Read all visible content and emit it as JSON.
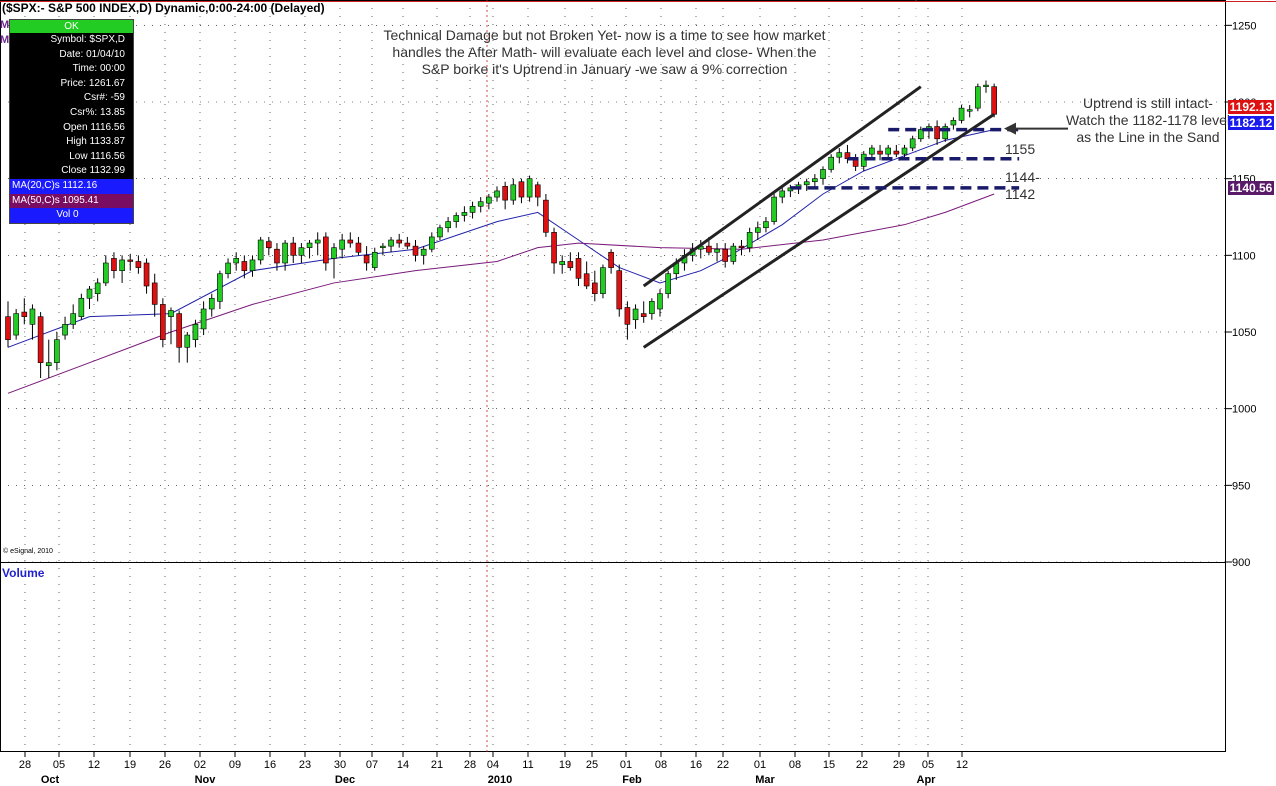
{
  "title": "($SPX:- S&P 500 INDEX,D) Dynamic,0:00-24:00 (Delayed)",
  "info_box": {
    "status": "OK",
    "rows": [
      "Symbol: $SPX,D",
      "Date: 01/04/10",
      "Time: 00:00",
      "Price: 1261.67",
      "Csr#: -59",
      "Csr%: 13.85",
      "Open 1116.56",
      "High 1133.87",
      "Low 1116.56",
      "Close 1132.99"
    ],
    "ma20": "MA(20,C)s 1112.16",
    "ma50": "MA(50,C)s 1095.41",
    "vol": "Vol 0"
  },
  "left_markers": [
    "M",
    "M"
  ],
  "annotations": {
    "headline": "Technical Damage but not Broken Yet- now is a time to see how market handles the After Math- will evaluate each level and close-  When the S&P borke it's Uptrend in January -we saw a 9% correction",
    "uptrend": "Uptrend is still intact-Watch the 1182-1178 level as the Line in the Sand",
    "level_1155": "1155",
    "level_1144": "1144-1142"
  },
  "price_tags": [
    {
      "value": "1192.13",
      "color": "#dd1111"
    },
    {
      "value": "1182.12",
      "color": "#1a1aee"
    },
    {
      "value": "1140.56",
      "color": "#5a1a6a"
    }
  ],
  "volume_label": "Volume",
  "copyright": "© eSignal, 2010",
  "colors": {
    "up": "#22cc22",
    "down": "#dd1111",
    "ma20": "#2222aa",
    "ma50": "#7a1a7a",
    "grid": "#000000",
    "level": "#1a1a6a"
  },
  "chart_data": {
    "type": "candlestick",
    "title": "($SPX:- S&P 500 INDEX,D) Dynamic,0:00-24:00 (Delayed)",
    "ylim": [
      900,
      1260
    ],
    "y_ticks": [
      900,
      950,
      1000,
      1050,
      1100,
      1150,
      1200,
      1250
    ],
    "x_tick_labels": [
      "28",
      "05",
      "12",
      "19",
      "26",
      "02",
      "09",
      "16",
      "23",
      "30",
      "07",
      "14",
      "21",
      "28",
      "04",
      "11",
      "19",
      "25",
      "01",
      "08",
      "16",
      "22",
      "01",
      "08",
      "15",
      "22",
      "29",
      "05",
      "12"
    ],
    "month_labels": [
      "Oct",
      "Nov",
      "Dec",
      "2010",
      "Feb",
      "Mar",
      "Apr"
    ],
    "candles": [
      {
        "o": 1060,
        "h": 1070,
        "l": 1040,
        "c": 1045
      },
      {
        "o": 1048,
        "h": 1065,
        "l": 1045,
        "c": 1062
      },
      {
        "o": 1063,
        "h": 1072,
        "l": 1055,
        "c": 1060
      },
      {
        "o": 1055,
        "h": 1068,
        "l": 1045,
        "c": 1065
      },
      {
        "o": 1060,
        "h": 1063,
        "l": 1020,
        "c": 1030
      },
      {
        "o": 1028,
        "h": 1045,
        "l": 1020,
        "c": 1030
      },
      {
        "o": 1030,
        "h": 1050,
        "l": 1025,
        "c": 1045
      },
      {
        "o": 1048,
        "h": 1060,
        "l": 1045,
        "c": 1055
      },
      {
        "o": 1055,
        "h": 1068,
        "l": 1052,
        "c": 1062
      },
      {
        "o": 1060,
        "h": 1075,
        "l": 1058,
        "c": 1072
      },
      {
        "o": 1072,
        "h": 1080,
        "l": 1065,
        "c": 1078
      },
      {
        "o": 1075,
        "h": 1085,
        "l": 1070,
        "c": 1082
      },
      {
        "o": 1082,
        "h": 1100,
        "l": 1080,
        "c": 1095
      },
      {
        "o": 1098,
        "h": 1102,
        "l": 1085,
        "c": 1090
      },
      {
        "o": 1090,
        "h": 1100,
        "l": 1082,
        "c": 1097
      },
      {
        "o": 1097,
        "h": 1101,
        "l": 1090,
        "c": 1096
      },
      {
        "o": 1096,
        "h": 1100,
        "l": 1088,
        "c": 1092
      },
      {
        "o": 1095,
        "h": 1098,
        "l": 1075,
        "c": 1080
      },
      {
        "o": 1082,
        "h": 1088,
        "l": 1060,
        "c": 1068
      },
      {
        "o": 1068,
        "h": 1072,
        "l": 1040,
        "c": 1045
      },
      {
        "o": 1060,
        "h": 1066,
        "l": 1042,
        "c": 1064
      },
      {
        "o": 1062,
        "h": 1064,
        "l": 1030,
        "c": 1040
      },
      {
        "o": 1040,
        "h": 1050,
        "l": 1030,
        "c": 1048
      },
      {
        "o": 1045,
        "h": 1058,
        "l": 1040,
        "c": 1055
      },
      {
        "o": 1052,
        "h": 1070,
        "l": 1048,
        "c": 1065
      },
      {
        "o": 1065,
        "h": 1075,
        "l": 1060,
        "c": 1072
      },
      {
        "o": 1070,
        "h": 1090,
        "l": 1065,
        "c": 1088
      },
      {
        "o": 1088,
        "h": 1098,
        "l": 1085,
        "c": 1095
      },
      {
        "o": 1095,
        "h": 1102,
        "l": 1090,
        "c": 1098
      },
      {
        "o": 1096,
        "h": 1100,
        "l": 1085,
        "c": 1090
      },
      {
        "o": 1090,
        "h": 1100,
        "l": 1086,
        "c": 1097
      },
      {
        "o": 1097,
        "h": 1112,
        "l": 1094,
        "c": 1110
      },
      {
        "o": 1109,
        "h": 1112,
        "l": 1100,
        "c": 1105
      },
      {
        "o": 1104,
        "h": 1108,
        "l": 1090,
        "c": 1095
      },
      {
        "o": 1095,
        "h": 1110,
        "l": 1090,
        "c": 1108
      },
      {
        "o": 1108,
        "h": 1112,
        "l": 1095,
        "c": 1100
      },
      {
        "o": 1100,
        "h": 1108,
        "l": 1095,
        "c": 1105
      },
      {
        "o": 1105,
        "h": 1110,
        "l": 1098,
        "c": 1108
      },
      {
        "o": 1108,
        "h": 1115,
        "l": 1100,
        "c": 1110
      },
      {
        "o": 1112,
        "h": 1115,
        "l": 1090,
        "c": 1095
      },
      {
        "o": 1098,
        "h": 1108,
        "l": 1085,
        "c": 1105
      },
      {
        "o": 1104,
        "h": 1114,
        "l": 1098,
        "c": 1110
      },
      {
        "o": 1110,
        "h": 1115,
        "l": 1105,
        "c": 1108
      },
      {
        "o": 1108,
        "h": 1112,
        "l": 1100,
        "c": 1102
      },
      {
        "o": 1100,
        "h": 1106,
        "l": 1090,
        "c": 1095
      },
      {
        "o": 1092,
        "h": 1105,
        "l": 1090,
        "c": 1102
      },
      {
        "o": 1105,
        "h": 1108,
        "l": 1100,
        "c": 1106
      },
      {
        "o": 1106,
        "h": 1112,
        "l": 1102,
        "c": 1110
      },
      {
        "o": 1110,
        "h": 1114,
        "l": 1105,
        "c": 1108
      },
      {
        "o": 1108,
        "h": 1112,
        "l": 1104,
        "c": 1106
      },
      {
        "o": 1106,
        "h": 1110,
        "l": 1096,
        "c": 1100
      },
      {
        "o": 1100,
        "h": 1106,
        "l": 1094,
        "c": 1104
      },
      {
        "o": 1104,
        "h": 1115,
        "l": 1102,
        "c": 1112
      },
      {
        "o": 1112,
        "h": 1120,
        "l": 1110,
        "c": 1118
      },
      {
        "o": 1118,
        "h": 1125,
        "l": 1115,
        "c": 1122
      },
      {
        "o": 1122,
        "h": 1128,
        "l": 1118,
        "c": 1126
      },
      {
        "o": 1126,
        "h": 1132,
        "l": 1122,
        "c": 1128
      },
      {
        "o": 1128,
        "h": 1135,
        "l": 1124,
        "c": 1132
      },
      {
        "o": 1132,
        "h": 1138,
        "l": 1128,
        "c": 1135
      },
      {
        "o": 1134,
        "h": 1140,
        "l": 1130,
        "c": 1138
      },
      {
        "o": 1138,
        "h": 1145,
        "l": 1135,
        "c": 1142
      },
      {
        "o": 1145,
        "h": 1148,
        "l": 1130,
        "c": 1136
      },
      {
        "o": 1136,
        "h": 1150,
        "l": 1133,
        "c": 1146
      },
      {
        "o": 1148,
        "h": 1150,
        "l": 1134,
        "c": 1138
      },
      {
        "o": 1138,
        "h": 1152,
        "l": 1135,
        "c": 1150
      },
      {
        "o": 1146,
        "h": 1148,
        "l": 1132,
        "c": 1138
      },
      {
        "o": 1136,
        "h": 1140,
        "l": 1112,
        "c": 1115
      },
      {
        "o": 1115,
        "h": 1118,
        "l": 1088,
        "c": 1095
      },
      {
        "o": 1094,
        "h": 1100,
        "l": 1088,
        "c": 1096
      },
      {
        "o": 1096,
        "h": 1102,
        "l": 1090,
        "c": 1092
      },
      {
        "o": 1098,
        "h": 1102,
        "l": 1080,
        "c": 1085
      },
      {
        "o": 1088,
        "h": 1096,
        "l": 1078,
        "c": 1080
      },
      {
        "o": 1082,
        "h": 1090,
        "l": 1070,
        "c": 1075
      },
      {
        "o": 1075,
        "h": 1094,
        "l": 1072,
        "c": 1092
      },
      {
        "o": 1102,
        "h": 1104,
        "l": 1088,
        "c": 1092
      },
      {
        "o": 1090,
        "h": 1094,
        "l": 1060,
        "c": 1065
      },
      {
        "o": 1066,
        "h": 1070,
        "l": 1045,
        "c": 1055
      },
      {
        "o": 1058,
        "h": 1068,
        "l": 1052,
        "c": 1065
      },
      {
        "o": 1062,
        "h": 1070,
        "l": 1056,
        "c": 1060
      },
      {
        "o": 1062,
        "h": 1072,
        "l": 1058,
        "c": 1070
      },
      {
        "o": 1065,
        "h": 1078,
        "l": 1060,
        "c": 1075
      },
      {
        "o": 1075,
        "h": 1090,
        "l": 1072,
        "c": 1088
      },
      {
        "o": 1088,
        "h": 1098,
        "l": 1084,
        "c": 1095
      },
      {
        "o": 1095,
        "h": 1104,
        "l": 1090,
        "c": 1100
      },
      {
        "o": 1100,
        "h": 1108,
        "l": 1096,
        "c": 1104
      },
      {
        "o": 1104,
        "h": 1110,
        "l": 1098,
        "c": 1106
      },
      {
        "o": 1106,
        "h": 1112,
        "l": 1100,
        "c": 1102
      },
      {
        "o": 1102,
        "h": 1108,
        "l": 1096,
        "c": 1104
      },
      {
        "o": 1104,
        "h": 1108,
        "l": 1092,
        "c": 1096
      },
      {
        "o": 1096,
        "h": 1108,
        "l": 1094,
        "c": 1106
      },
      {
        "o": 1106,
        "h": 1110,
        "l": 1100,
        "c": 1105
      },
      {
        "o": 1105,
        "h": 1118,
        "l": 1102,
        "c": 1115
      },
      {
        "o": 1115,
        "h": 1122,
        "l": 1110,
        "c": 1118
      },
      {
        "o": 1118,
        "h": 1125,
        "l": 1115,
        "c": 1122
      },
      {
        "o": 1122,
        "h": 1140,
        "l": 1120,
        "c": 1138
      },
      {
        "o": 1138,
        "h": 1145,
        "l": 1134,
        "c": 1142
      },
      {
        "o": 1142,
        "h": 1146,
        "l": 1138,
        "c": 1144
      },
      {
        "o": 1144,
        "h": 1148,
        "l": 1140,
        "c": 1146
      },
      {
        "o": 1146,
        "h": 1150,
        "l": 1142,
        "c": 1148
      },
      {
        "o": 1148,
        "h": 1153,
        "l": 1145,
        "c": 1150
      },
      {
        "o": 1150,
        "h": 1158,
        "l": 1146,
        "c": 1156
      },
      {
        "o": 1156,
        "h": 1166,
        "l": 1154,
        "c": 1164
      },
      {
        "o": 1164,
        "h": 1170,
        "l": 1160,
        "c": 1167
      },
      {
        "o": 1167,
        "h": 1172,
        "l": 1160,
        "c": 1163
      },
      {
        "o": 1163,
        "h": 1166,
        "l": 1155,
        "c": 1158
      },
      {
        "o": 1158,
        "h": 1168,
        "l": 1155,
        "c": 1166
      },
      {
        "o": 1166,
        "h": 1172,
        "l": 1162,
        "c": 1170
      },
      {
        "o": 1168,
        "h": 1172,
        "l": 1162,
        "c": 1166
      },
      {
        "o": 1166,
        "h": 1172,
        "l": 1164,
        "c": 1170
      },
      {
        "o": 1168,
        "h": 1172,
        "l": 1164,
        "c": 1166
      },
      {
        "o": 1166,
        "h": 1172,
        "l": 1163,
        "c": 1170
      },
      {
        "o": 1170,
        "h": 1178,
        "l": 1168,
        "c": 1176
      },
      {
        "o": 1176,
        "h": 1184,
        "l": 1174,
        "c": 1182
      },
      {
        "o": 1182,
        "h": 1186,
        "l": 1176,
        "c": 1184
      },
      {
        "o": 1184,
        "h": 1188,
        "l": 1172,
        "c": 1176
      },
      {
        "o": 1176,
        "h": 1186,
        "l": 1174,
        "c": 1184
      },
      {
        "o": 1185,
        "h": 1190,
        "l": 1182,
        "c": 1188
      },
      {
        "o": 1188,
        "h": 1198,
        "l": 1186,
        "c": 1196
      },
      {
        "o": 1194,
        "h": 1198,
        "l": 1190,
        "c": 1195
      },
      {
        "o": 1196,
        "h": 1212,
        "l": 1194,
        "c": 1210
      },
      {
        "o": 1210,
        "h": 1214,
        "l": 1206,
        "c": 1211
      },
      {
        "o": 1210,
        "h": 1212,
        "l": 1190,
        "c": 1192
      }
    ],
    "ma20": [
      [
        0,
        1040
      ],
      [
        10,
        1060
      ],
      [
        20,
        1062
      ],
      [
        30,
        1090
      ],
      [
        40,
        1098
      ],
      [
        50,
        1104
      ],
      [
        60,
        1122
      ],
      [
        65,
        1128
      ],
      [
        70,
        1110
      ],
      [
        75,
        1092
      ],
      [
        80,
        1082
      ],
      [
        85,
        1090
      ],
      [
        88,
        1098
      ],
      [
        95,
        1120
      ],
      [
        100,
        1140
      ],
      [
        105,
        1155
      ],
      [
        110,
        1165
      ],
      [
        115,
        1175
      ],
      [
        121,
        1182
      ]
    ],
    "ma50": [
      [
        0,
        1010
      ],
      [
        10,
        1030
      ],
      [
        20,
        1050
      ],
      [
        30,
        1068
      ],
      [
        40,
        1082
      ],
      [
        50,
        1090
      ],
      [
        60,
        1096
      ],
      [
        65,
        1105
      ],
      [
        70,
        1108
      ],
      [
        80,
        1105
      ],
      [
        90,
        1104
      ],
      [
        100,
        1110
      ],
      [
        110,
        1120
      ],
      [
        115,
        1128
      ],
      [
        121,
        1140
      ]
    ],
    "trend_lines": [
      {
        "x1": 78,
        "y1": 1080,
        "x2": 112,
        "y2": 1210
      },
      {
        "x1": 78,
        "y1": 1040,
        "x2": 121,
        "y2": 1192
      }
    ],
    "levels": [
      {
        "value": 1182,
        "x_from": 108,
        "x_to": 121
      },
      {
        "value": 1163,
        "x_from": 103,
        "x_to": 121
      },
      {
        "value": 1144,
        "x_from": 96,
        "x_to": 121
      }
    ]
  }
}
